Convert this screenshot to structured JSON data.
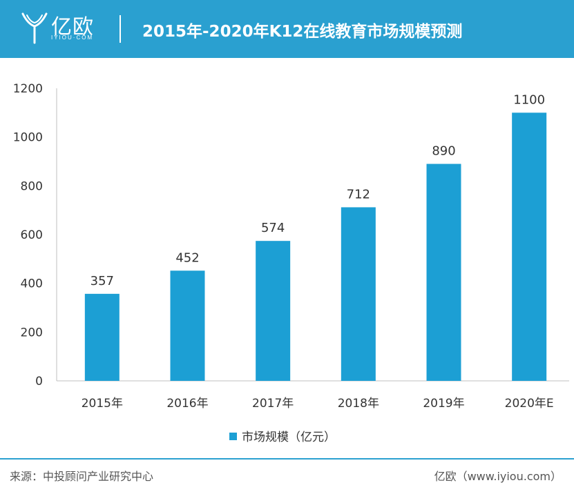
{
  "header": {
    "logo_text": "亿欧",
    "logo_sub": "IYIOU·COM",
    "title": "2015年-2020年K12在线教育市场规模预测"
  },
  "chart_data": {
    "type": "bar",
    "categories": [
      "2015年",
      "2016年",
      "2017年",
      "2018年",
      "2019年",
      "2020年E"
    ],
    "series": [
      {
        "name": "市场规模（亿元）",
        "values": [
          357,
          452,
          574,
          712,
          890,
          1100
        ]
      }
    ],
    "ylim": [
      0,
      1200
    ],
    "yticks": [
      0,
      200,
      400,
      600,
      800,
      1000,
      1200
    ],
    "grid": false,
    "legend": "bottom-center",
    "bar_color": "#1c9fd4"
  },
  "footer": {
    "source": "来源：中投顾问产业研究中心",
    "brand": "亿欧（www.iyiou.com）"
  },
  "colors": {
    "header_bg": "#2aa0d0",
    "bar": "#1c9fd4",
    "text": "#333333"
  }
}
